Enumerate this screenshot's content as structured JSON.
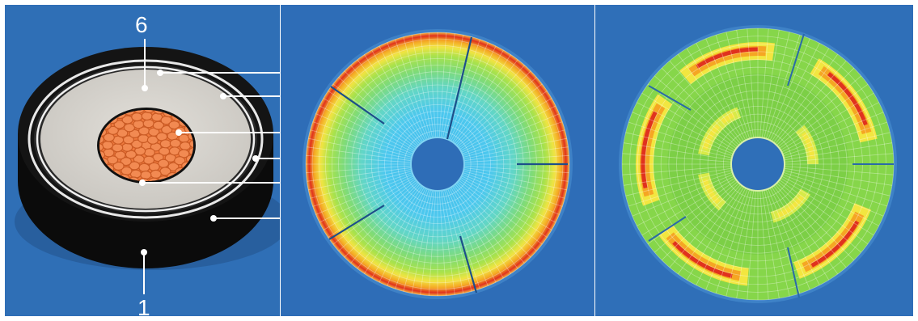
{
  "figure": {
    "panels": [
      {
        "id": "cable-cross-section",
        "callout_labels": [
          "6",
          "1"
        ]
      },
      {
        "id": "field-simulation-uniform",
        "colormap": [
          "#4fd0f5",
          "#5fd8a0",
          "#8ee04a",
          "#f2e640",
          "#f5a623",
          "#e0321e"
        ]
      },
      {
        "id": "field-simulation-segmented",
        "colormap": [
          "#7fd34a",
          "#a6e04a",
          "#f2e640",
          "#f5a623",
          "#e0321e"
        ]
      }
    ]
  },
  "colors": {
    "background_blue": "#2f6fb6",
    "jacket": "#0d0d0d",
    "insulation": "#d9d6d0",
    "conductor": "#f07a3e",
    "leader": "#ffffff"
  }
}
